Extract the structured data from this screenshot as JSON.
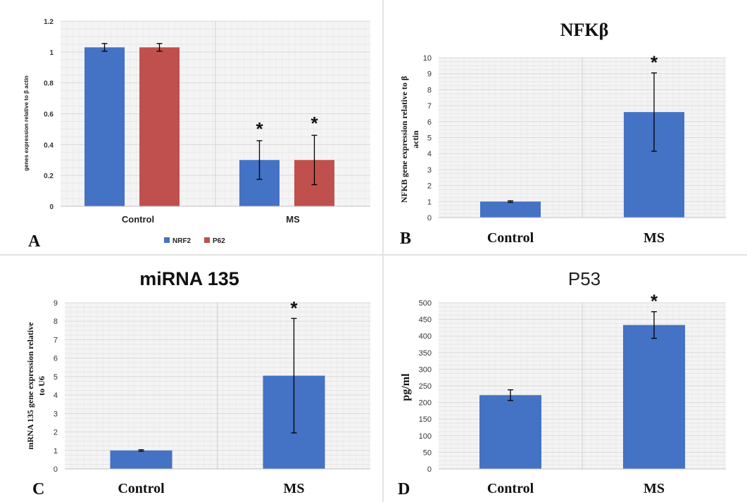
{
  "colors": {
    "blue": "#4472c4",
    "red": "#c0504d",
    "grid": "#d9d9d9",
    "plot_bg": "#f4f4f4"
  },
  "chart_data": [
    {
      "panel": "A",
      "type": "bar",
      "title": "",
      "ylabel": "genes expression relative to β actin",
      "categories": [
        "Control",
        "MS"
      ],
      "series": [
        {
          "name": "NRF2",
          "values": [
            1.03,
            0.3
          ],
          "errors": [
            0.025,
            0.125
          ]
        },
        {
          "name": "P62",
          "values": [
            1.03,
            0.3
          ],
          "errors": [
            0.025,
            0.16
          ]
        }
      ],
      "significance": [
        "",
        "*"
      ],
      "ylim": [
        0,
        1.2
      ],
      "yticks": [
        "0",
        "0.2",
        "0.4",
        "0.6",
        "0.8",
        "1",
        "1.2"
      ],
      "legend_position": "bottom",
      "grid": true
    },
    {
      "panel": "B",
      "type": "bar",
      "title": "NFKβ",
      "ylabel": "NFKB gene expression relative to β actin",
      "categories": [
        "Control",
        "MS"
      ],
      "series": [
        {
          "values": [
            1.0,
            6.6
          ],
          "errors": [
            0.05,
            2.45
          ]
        }
      ],
      "significance": [
        "",
        "*"
      ],
      "ylim": [
        0,
        10
      ],
      "yticks": [
        "0",
        "1",
        "2",
        "3",
        "4",
        "5",
        "6",
        "7",
        "8",
        "9",
        "10"
      ],
      "grid": true
    },
    {
      "panel": "C",
      "type": "bar",
      "title": "miRNA 135",
      "ylabel": "mRNA 135 gene expression relative to U6",
      "categories": [
        "Control",
        "MS"
      ],
      "series": [
        {
          "values": [
            1.0,
            5.05
          ],
          "errors": [
            0.04,
            3.1
          ]
        }
      ],
      "significance": [
        "",
        "*"
      ],
      "ylim": [
        0,
        9
      ],
      "yticks": [
        "0",
        "1",
        "2",
        "3",
        "4",
        "5",
        "6",
        "7",
        "8",
        "9"
      ],
      "grid": true
    },
    {
      "panel": "D",
      "type": "bar",
      "title": "P53",
      "ylabel": "pg/ml",
      "categories": [
        "Control",
        "MS"
      ],
      "series": [
        {
          "values": [
            222,
            433
          ],
          "errors": [
            16,
            40
          ]
        }
      ],
      "significance": [
        "",
        "*"
      ],
      "ylim": [
        0,
        500
      ],
      "yticks": [
        "0",
        "50",
        "100",
        "150",
        "200",
        "250",
        "300",
        "350",
        "400",
        "450",
        "500"
      ],
      "grid": true
    }
  ]
}
